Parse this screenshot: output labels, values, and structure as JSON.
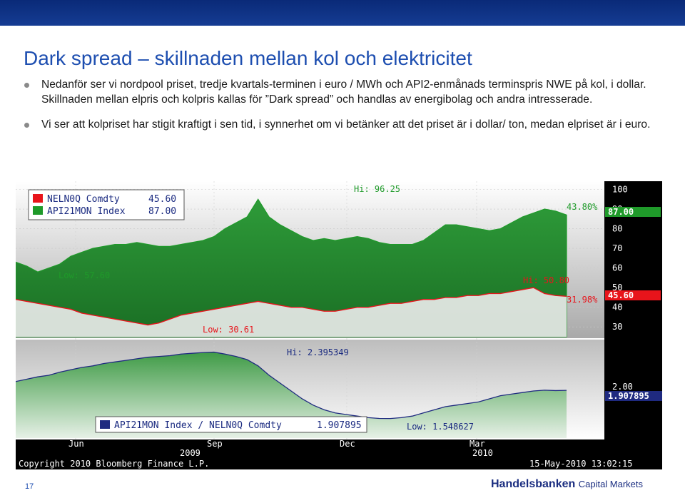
{
  "slide": {
    "title": "Dark spread – skillnaden mellan kol och elektricitet",
    "bullets": [
      "Nedanför ser vi nordpool priset, tredje kvartals-terminen i euro / MWh och API2-enmånads terminspris NWE på kol, i dollar. Skillnaden mellan elpris och kolpris kallas för ”Dark spread” och handlas av energibolag och andra intresserade.",
      "Vi ser att kolpriset har stigit kraftigt i sen tid, i synnerhet om vi betänker att det priset är i dollar/ ton, medan elpriset är i euro."
    ],
    "page_number": "17",
    "logo_main": "Handelsbanken",
    "logo_sub": "Capital Markets"
  },
  "colors": {
    "header_bar": "#0a2a78",
    "title": "#1d4eb0",
    "elec_series": "#e8141b",
    "coal_series": "#1f9a2a",
    "ratio_series": "#1f2a80",
    "chart_top_bg_top": "#ffffff",
    "chart_top_bg_bottom": "#a9a9a9",
    "label_yellow": "#e5d800",
    "bloomberg_bg": "#000000"
  },
  "chart_data": [
    {
      "type": "area",
      "panel": "top",
      "legend": [
        {
          "label": "NELN0Q Comdty",
          "value": "45.60",
          "color": "#e8141b"
        },
        {
          "label": "API21MON Index",
          "value": "87.00",
          "color": "#1f9a2a"
        }
      ],
      "x_labels": [
        "Jun",
        "Sep",
        "Dec",
        "Mar"
      ],
      "year_labels": [
        "2009",
        "2010"
      ],
      "y_ticks": [
        "100",
        "90",
        "80",
        "70",
        "60",
        "50",
        "40",
        "30"
      ],
      "ylim": [
        25,
        102
      ],
      "last_value_tags": {
        "coal": "87.00",
        "elec": "45.60"
      },
      "annotations": {
        "hi": "Hi: 96.25",
        "low_coal": "Low: 57.60",
        "low_elec": "Low: 30.61",
        "hi_elec": "Hi: 50.80",
        "pct_upper": "43.80%",
        "pct_lower": "31.98%"
      },
      "series": [
        {
          "name": "API21MON Index",
          "x": [
            0,
            5,
            10,
            15,
            20,
            25,
            30,
            35,
            40,
            45,
            50,
            55,
            60,
            65,
            70,
            75,
            80,
            85,
            90,
            95,
            100,
            105,
            110,
            115,
            120,
            125,
            130,
            135,
            140,
            145,
            150,
            155,
            160,
            165,
            170,
            175,
            180,
            185,
            190,
            195,
            200,
            205,
            210,
            215,
            220,
            225,
            230,
            235,
            240,
            245,
            250
          ],
          "values": [
            63,
            61,
            58,
            60,
            62,
            66,
            68,
            70,
            71,
            72,
            72,
            73,
            72,
            71,
            71,
            72,
            73,
            74,
            76,
            80,
            83,
            86,
            95,
            86,
            82,
            79,
            76,
            74,
            75,
            74,
            75,
            76,
            75,
            73,
            72,
            72,
            72,
            74,
            78,
            82,
            82,
            81,
            80,
            79,
            80,
            83,
            86,
            88,
            90,
            89,
            87
          ]
        },
        {
          "name": "NELN0Q Comdty",
          "x": [
            0,
            5,
            10,
            15,
            20,
            25,
            30,
            35,
            40,
            45,
            50,
            55,
            60,
            65,
            70,
            75,
            80,
            85,
            90,
            95,
            100,
            105,
            110,
            115,
            120,
            125,
            130,
            135,
            140,
            145,
            150,
            155,
            160,
            165,
            170,
            175,
            180,
            185,
            190,
            195,
            200,
            205,
            210,
            215,
            220,
            225,
            230,
            235,
            240,
            245,
            250
          ],
          "values": [
            44,
            43,
            42,
            41,
            40,
            39,
            37,
            36,
            35,
            34,
            33,
            32,
            31,
            32,
            34,
            36,
            37,
            38,
            39,
            40,
            41,
            42,
            43,
            42,
            41,
            40,
            40,
            39,
            38,
            38,
            39,
            40,
            40,
            41,
            42,
            42,
            43,
            44,
            44,
            45,
            45,
            46,
            46,
            47,
            47,
            48,
            49,
            50,
            47,
            46,
            45.6
          ]
        }
      ]
    },
    {
      "type": "area",
      "panel": "bottom",
      "legend": [
        {
          "label": "API21MON Index / NELN0Q Comdty",
          "value": "1.907895",
          "color": "#1f2a80"
        }
      ],
      "y_ticks": [
        "2.00"
      ],
      "last_value_tag": "1.907895",
      "annotations": {
        "hi": "Hi: 2.395349",
        "low": "Low: 1.548627"
      },
      "series": [
        {
          "name": "API21MON Index / NELN0Q Comdty",
          "x": [
            0,
            5,
            10,
            15,
            20,
            25,
            30,
            35,
            40,
            45,
            50,
            55,
            60,
            65,
            70,
            75,
            80,
            85,
            90,
            95,
            100,
            105,
            110,
            115,
            120,
            125,
            130,
            135,
            140,
            145,
            150,
            155,
            160,
            165,
            170,
            175,
            180,
            185,
            190,
            195,
            200,
            205,
            210,
            215,
            220,
            225,
            230,
            235,
            240,
            245,
            250
          ],
          "values": [
            2.02,
            2.05,
            2.08,
            2.1,
            2.14,
            2.17,
            2.2,
            2.22,
            2.25,
            2.27,
            2.29,
            2.31,
            2.33,
            2.34,
            2.35,
            2.37,
            2.38,
            2.39,
            2.395,
            2.37,
            2.34,
            2.3,
            2.22,
            2.1,
            2.0,
            1.9,
            1.8,
            1.72,
            1.66,
            1.62,
            1.6,
            1.58,
            1.56,
            1.55,
            1.549,
            1.56,
            1.58,
            1.62,
            1.66,
            1.7,
            1.72,
            1.74,
            1.76,
            1.8,
            1.84,
            1.86,
            1.88,
            1.9,
            1.91,
            1.905,
            1.907895
          ]
        }
      ]
    }
  ],
  "chart_footer": {
    "copyright": "Copyright 2010 Bloomberg Finance L.P.",
    "timestamp": "15-May-2010 13:02:15"
  }
}
